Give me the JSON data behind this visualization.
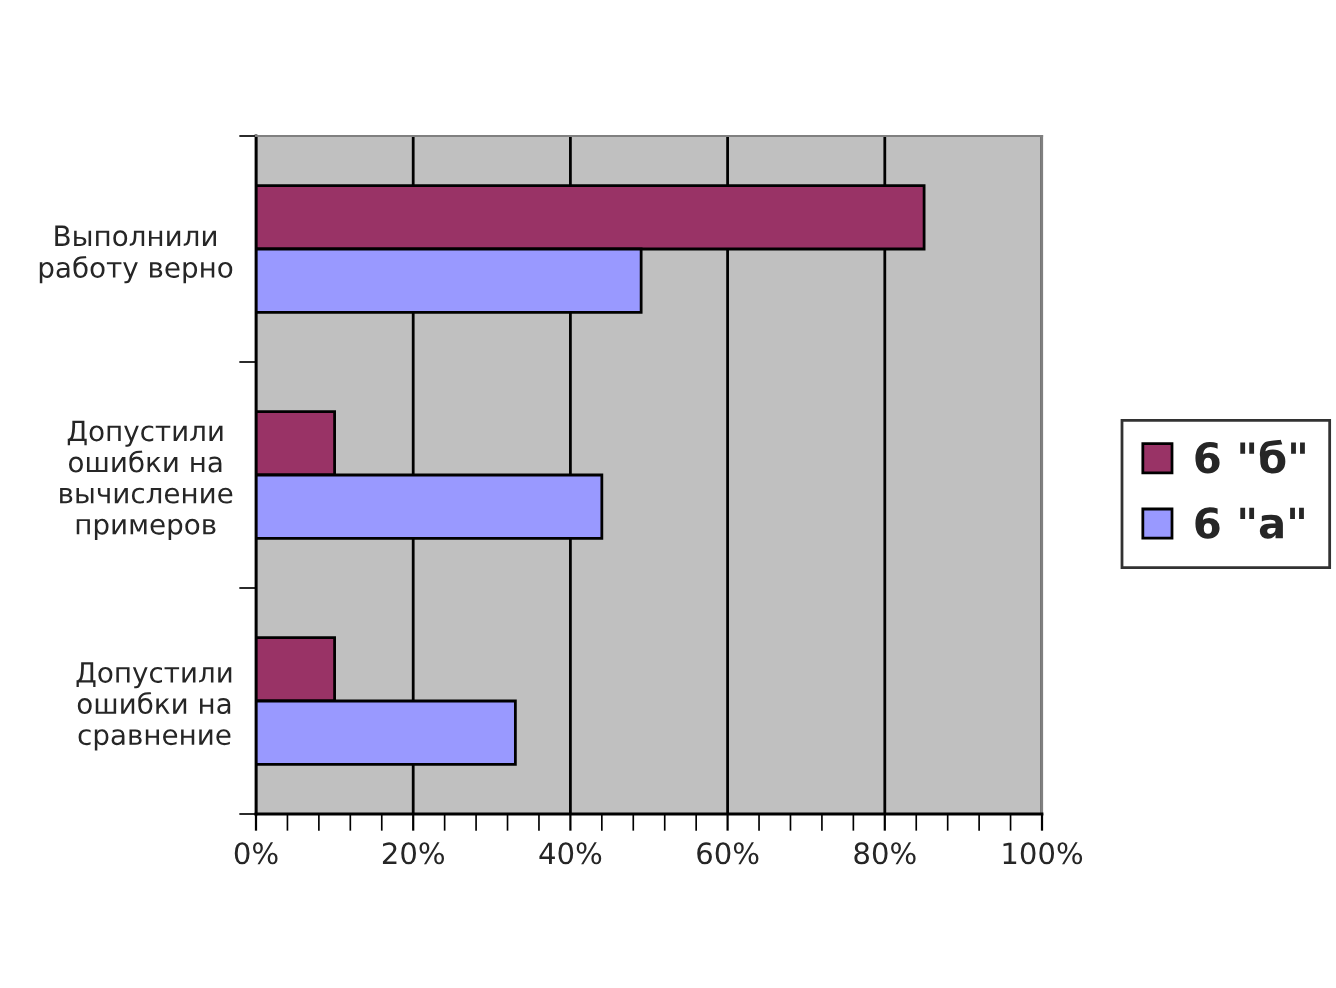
{
  "chart_data": {
    "type": "bar",
    "orientation": "horizontal",
    "categories": [
      "Выполнили работу верно",
      "Допустили ошибки на вычисление примеров",
      "Допустили ошибки на сравнение"
    ],
    "series": [
      {
        "name": "6 \"б\"",
        "color": "#993366",
        "values": [
          85,
          10,
          10
        ]
      },
      {
        "name": "6 \"а\"",
        "color": "#9999ff",
        "values": [
          49,
          44,
          33
        ]
      }
    ],
    "xlim": [
      0,
      100
    ],
    "xticks": [
      {
        "value": 0,
        "label": "0%"
      },
      {
        "value": 4,
        "label": null
      },
      {
        "value": 8,
        "label": null
      },
      {
        "value": 12,
        "label": null
      },
      {
        "value": 16,
        "label": null
      },
      {
        "value": 20,
        "label": "20%"
      },
      {
        "value": 24,
        "label": null
      },
      {
        "value": 28,
        "label": null
      },
      {
        "value": 32,
        "label": null
      },
      {
        "value": 36,
        "label": null
      },
      {
        "value": 40,
        "label": "40%"
      },
      {
        "value": 44,
        "label": null
      },
      {
        "value": 48,
        "label": null
      },
      {
        "value": 52,
        "label": null
      },
      {
        "value": 56,
        "label": null
      },
      {
        "value": 60,
        "label": "60%"
      },
      {
        "value": 64,
        "label": null
      },
      {
        "value": 68,
        "label": null
      },
      {
        "value": 72,
        "label": null
      },
      {
        "value": 76,
        "label": null
      },
      {
        "value": 80,
        "label": "80%"
      },
      {
        "value": 84,
        "label": null
      },
      {
        "value": 88,
        "label": null
      },
      {
        "value": 92,
        "label": null
      },
      {
        "value": 96,
        "label": null
      },
      {
        "value": 100,
        "label": "100%"
      }
    ],
    "grid": "x",
    "legend": "right"
  }
}
